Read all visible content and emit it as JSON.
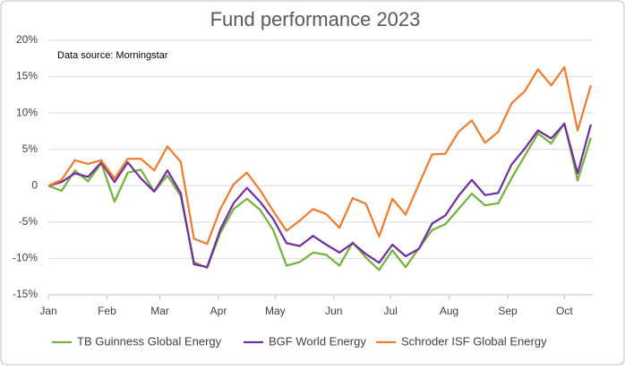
{
  "chart_data": {
    "type": "line",
    "title": "Fund performance 2023",
    "annotation": "Data source: Morningstar",
    "x": [
      0,
      7,
      14,
      21,
      28,
      35,
      42,
      49,
      56,
      63,
      70,
      77,
      84,
      91,
      98,
      105,
      112,
      119,
      126,
      133,
      140,
      147,
      154,
      161,
      168,
      175,
      182,
      189,
      196,
      203,
      210,
      217,
      224,
      231,
      238,
      245,
      252,
      259,
      266,
      273,
      280,
      287
    ],
    "xlim": [
      0,
      288
    ],
    "xticks": [
      {
        "value": 0,
        "label": "Jan"
      },
      {
        "value": 31,
        "label": "Feb"
      },
      {
        "value": 59,
        "label": "Mar"
      },
      {
        "value": 90,
        "label": "Apr"
      },
      {
        "value": 120,
        "label": "May"
      },
      {
        "value": 151,
        "label": "Jun"
      },
      {
        "value": 181,
        "label": "Jul"
      },
      {
        "value": 212,
        "label": "Aug"
      },
      {
        "value": 243,
        "label": "Sep"
      },
      {
        "value": 273,
        "label": "Oct"
      }
    ],
    "ylim": [
      -15,
      20
    ],
    "yticks": [
      {
        "value": -15,
        "label": "-15%"
      },
      {
        "value": -10,
        "label": "-10%"
      },
      {
        "value": -5,
        "label": "-5%"
      },
      0,
      {
        "value": 5,
        "label": "5%"
      },
      {
        "value": 10,
        "label": "10%"
      },
      {
        "value": 15,
        "label": "15%"
      },
      {
        "value": 20,
        "label": "20%"
      }
    ],
    "grid": true,
    "legend": "bottom",
    "series": [
      {
        "name": "TB Guinness Global Energy",
        "color": "#77b140",
        "values": [
          0,
          -0.7,
          2.1,
          0.6,
          3.1,
          -2.2,
          1.8,
          2.2,
          -0.8,
          1.4,
          -1.4,
          -10.5,
          -11.3,
          -6.5,
          -3.2,
          -1.8,
          -3.3,
          -6.1,
          -11,
          -10.5,
          -9.2,
          -9.5,
          -11,
          -7.8,
          -9.9,
          -11.6,
          -8.9,
          -11.2,
          -8.6,
          -6.1,
          -5.3,
          -3.2,
          -1.1,
          -2.7,
          -2.4,
          1.0,
          4.1,
          7.2,
          5.8,
          8.6,
          0.7,
          6.6
        ]
      },
      {
        "name": "BGF World Energy",
        "color": "#7030a0",
        "values": [
          0,
          0.5,
          1.7,
          1.2,
          3.2,
          0.5,
          3.2,
          1.0,
          -0.8,
          2.1,
          -1.0,
          -10.8,
          -11.2,
          -6,
          -2.4,
          -0.3,
          -2.2,
          -4.6,
          -7.9,
          -8.3,
          -6.9,
          -8.1,
          -9.2,
          -7.9,
          -9.4,
          -10.6,
          -8.1,
          -9.7,
          -8.7,
          -5.2,
          -4.1,
          -1.4,
          0.8,
          -1.3,
          -1.0,
          2.9,
          5.1,
          7.6,
          6.5,
          8.5,
          1.7,
          8.4
        ]
      },
      {
        "name": "Schroder ISF Global Energy",
        "color": "#ed7d31",
        "values": [
          0,
          0.8,
          3.5,
          3,
          3.5,
          1,
          3.7,
          3.7,
          2.1,
          5.4,
          3.3,
          -7.3,
          -8,
          -3.2,
          0.2,
          1.8,
          -0.6,
          -3.5,
          -6.2,
          -4.8,
          -3.2,
          -3.9,
          -5.8,
          -1.7,
          -2.5,
          -7,
          -1.8,
          -4,
          0.2,
          4.3,
          4.4,
          7.4,
          9,
          5.9,
          7.4,
          11.3,
          13,
          16,
          13.8,
          16.3,
          7.6,
          13.8
        ]
      }
    ]
  }
}
